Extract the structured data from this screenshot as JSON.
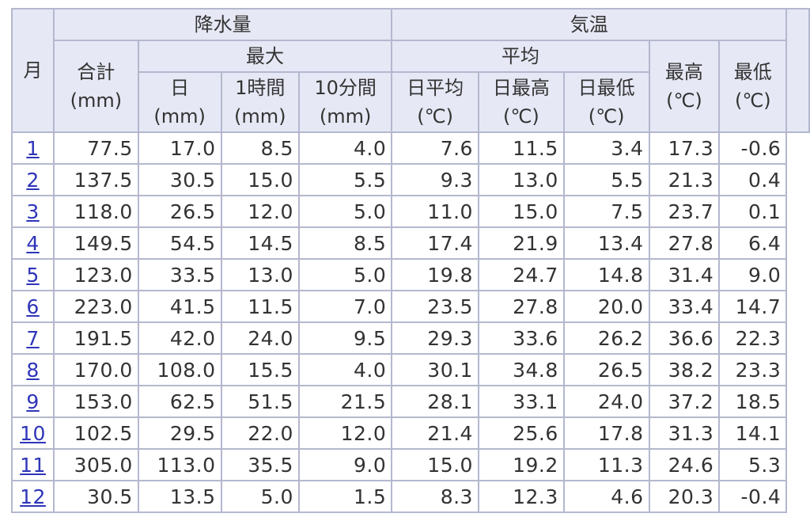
{
  "header": {
    "month": "月",
    "precip_group": "降水量",
    "temp_group": "気温",
    "max": "最大",
    "average": "平均",
    "total": "合計",
    "total_unit": "(mm)",
    "day": "日",
    "day_unit": "(mm)",
    "hour": "1時間",
    "hour_unit": "(mm)",
    "ten_min": "10分間",
    "ten_min_unit": "(mm)",
    "daily_avg": "日平均",
    "daily_max": "日最高",
    "daily_min": "日最低",
    "highest": "最高",
    "lowest": "最低",
    "temp_unit": "(℃)"
  },
  "rows": [
    {
      "month": "1",
      "total": "77.5",
      "day": "17.0",
      "hour": "8.5",
      "ten": "4.0",
      "davg": "7.6",
      "dmax": "11.5",
      "dmin": "3.4",
      "hi": "17.3",
      "lo": "-0.6"
    },
    {
      "month": "2",
      "total": "137.5",
      "day": "30.5",
      "hour": "15.0",
      "ten": "5.5",
      "davg": "9.3",
      "dmax": "13.0",
      "dmin": "5.5",
      "hi": "21.3",
      "lo": "0.4"
    },
    {
      "month": "3",
      "total": "118.0",
      "day": "26.5",
      "hour": "12.0",
      "ten": "5.0",
      "davg": "11.0",
      "dmax": "15.0",
      "dmin": "7.5",
      "hi": "23.7",
      "lo": "0.1"
    },
    {
      "month": "4",
      "total": "149.5",
      "day": "54.5",
      "hour": "14.5",
      "ten": "8.5",
      "davg": "17.4",
      "dmax": "21.9",
      "dmin": "13.4",
      "hi": "27.8",
      "lo": "6.4"
    },
    {
      "month": "5",
      "total": "123.0",
      "day": "33.5",
      "hour": "13.0",
      "ten": "5.0",
      "davg": "19.8",
      "dmax": "24.7",
      "dmin": "14.8",
      "hi": "31.4",
      "lo": "9.0"
    },
    {
      "month": "6",
      "total": "223.0",
      "day": "41.5",
      "hour": "11.5",
      "ten": "7.0",
      "davg": "23.5",
      "dmax": "27.8",
      "dmin": "20.0",
      "hi": "33.4",
      "lo": "14.7"
    },
    {
      "month": "7",
      "total": "191.5",
      "day": "42.0",
      "hour": "24.0",
      "ten": "9.5",
      "davg": "29.3",
      "dmax": "33.6",
      "dmin": "26.2",
      "hi": "36.6",
      "lo": "22.3"
    },
    {
      "month": "8",
      "total": "170.0",
      "day": "108.0",
      "hour": "15.5",
      "ten": "4.0",
      "davg": "30.1",
      "dmax": "34.8",
      "dmin": "26.5",
      "hi": "38.2",
      "lo": "23.3"
    },
    {
      "month": "9",
      "total": "153.0",
      "day": "62.5",
      "hour": "51.5",
      "ten": "21.5",
      "davg": "28.1",
      "dmax": "33.1",
      "dmin": "24.0",
      "hi": "37.2",
      "lo": "18.5"
    },
    {
      "month": "10",
      "total": "102.5",
      "day": "29.5",
      "hour": "22.0",
      "ten": "12.0",
      "davg": "21.4",
      "dmax": "25.6",
      "dmin": "17.8",
      "hi": "31.3",
      "lo": "14.1"
    },
    {
      "month": "11",
      "total": "305.0",
      "day": "113.0",
      "hour": "35.5",
      "ten": "9.0",
      "davg": "15.0",
      "dmax": "19.2",
      "dmin": "11.3",
      "hi": "24.6",
      "lo": "5.3"
    },
    {
      "month": "12",
      "total": "30.5",
      "day": "13.5",
      "hour": "5.0",
      "ten": "1.5",
      "davg": "8.3",
      "dmax": "12.3",
      "dmin": "4.6",
      "hi": "20.3",
      "lo": "-0.4"
    }
  ],
  "colors": {
    "header_bg": "#e6e8f5",
    "border": "#b4b8ce",
    "link": "#2e35b8",
    "text": "#333333"
  }
}
